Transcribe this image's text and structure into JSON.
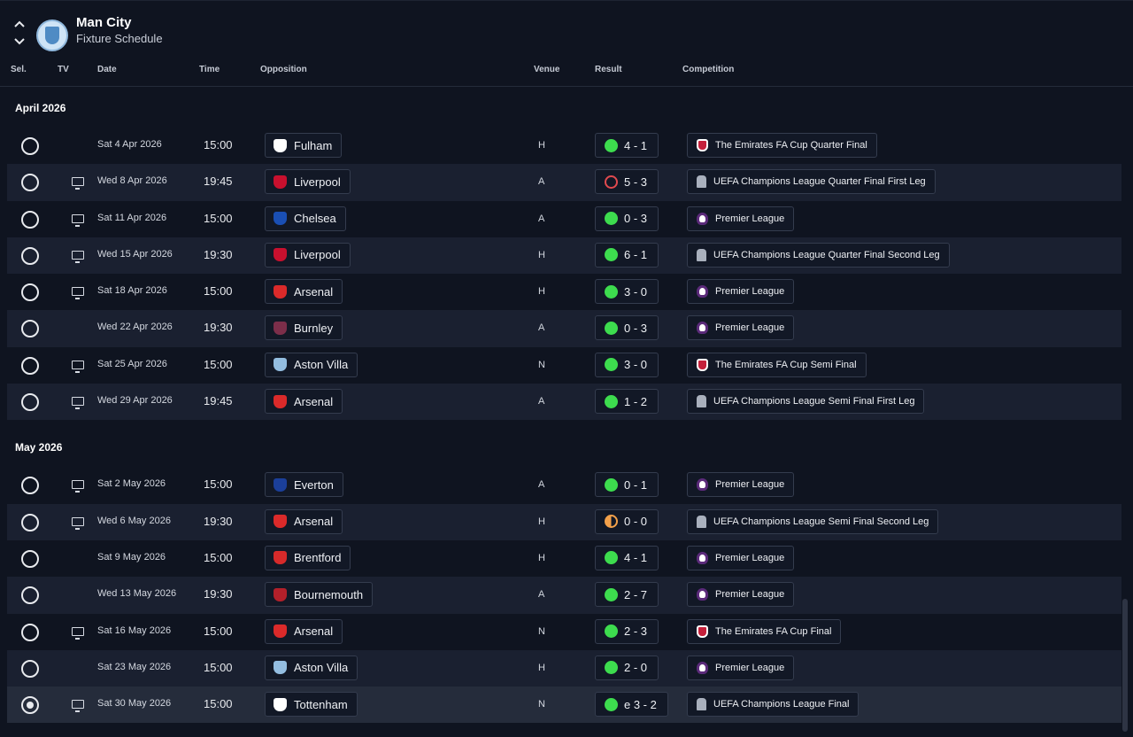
{
  "header": {
    "club_name": "Man City",
    "subtitle": "Fixture Schedule"
  },
  "columns": {
    "sel": "Sel.",
    "tv": "TV",
    "date": "Date",
    "time": "Time",
    "opposition": "Opposition",
    "venue": "Venue",
    "result": "Result",
    "competition": "Competition"
  },
  "months": [
    {
      "label": "April 2026",
      "fixtures": [
        {
          "selected": false,
          "tv": false,
          "date": "Sat 4 Apr 2026",
          "time": "15:00",
          "opponent": "Fulham",
          "opp_color": "#ffffff",
          "venue": "H",
          "outcome": "win",
          "score": "4 - 1",
          "comp_icon": "fa-cup-icon",
          "competition": "The Emirates FA Cup Quarter Final"
        },
        {
          "selected": false,
          "tv": true,
          "date": "Wed 8 Apr 2026",
          "time": "19:45",
          "opponent": "Liverpool",
          "opp_color": "#c8102e",
          "venue": "A",
          "outcome": "loss",
          "score": "5 - 3",
          "comp_icon": "ucl-icon",
          "competition": "UEFA Champions League Quarter Final First Leg"
        },
        {
          "selected": false,
          "tv": true,
          "date": "Sat 11 Apr 2026",
          "time": "15:00",
          "opponent": "Chelsea",
          "opp_color": "#1a4fb4",
          "venue": "A",
          "outcome": "win",
          "score": "0 - 3",
          "comp_icon": "premier-league-icon",
          "competition": "Premier League"
        },
        {
          "selected": false,
          "tv": true,
          "date": "Wed 15 Apr 2026",
          "time": "19:30",
          "opponent": "Liverpool",
          "opp_color": "#c8102e",
          "venue": "H",
          "outcome": "win",
          "score": "6 - 1",
          "comp_icon": "ucl-icon",
          "competition": "UEFA Champions League Quarter Final Second Leg"
        },
        {
          "selected": false,
          "tv": true,
          "date": "Sat 18 Apr 2026",
          "time": "15:00",
          "opponent": "Arsenal",
          "opp_color": "#db2a2a",
          "venue": "H",
          "outcome": "win",
          "score": "3 - 0",
          "comp_icon": "premier-league-icon",
          "competition": "Premier League"
        },
        {
          "selected": false,
          "tv": false,
          "date": "Wed 22 Apr 2026",
          "time": "19:30",
          "opponent": "Burnley",
          "opp_color": "#7c2e4a",
          "venue": "A",
          "outcome": "win",
          "score": "0 - 3",
          "comp_icon": "premier-league-icon",
          "competition": "Premier League"
        },
        {
          "selected": false,
          "tv": true,
          "date": "Sat 25 Apr 2026",
          "time": "15:00",
          "opponent": "Aston Villa",
          "opp_color": "#93bde0",
          "venue": "N",
          "outcome": "win",
          "score": "3 - 0",
          "comp_icon": "fa-cup-icon",
          "competition": "The Emirates FA Cup Semi Final"
        },
        {
          "selected": false,
          "tv": true,
          "date": "Wed 29 Apr 2026",
          "time": "19:45",
          "opponent": "Arsenal",
          "opp_color": "#db2a2a",
          "venue": "A",
          "outcome": "win",
          "score": "1 - 2",
          "comp_icon": "ucl-icon",
          "competition": "UEFA Champions League Semi Final First Leg"
        }
      ]
    },
    {
      "label": "May 2026",
      "fixtures": [
        {
          "selected": false,
          "tv": true,
          "date": "Sat 2 May 2026",
          "time": "15:00",
          "opponent": "Everton",
          "opp_color": "#1b3f9a",
          "venue": "A",
          "outcome": "win",
          "score": "0 - 1",
          "comp_icon": "premier-league-icon",
          "competition": "Premier League"
        },
        {
          "selected": false,
          "tv": true,
          "date": "Wed 6 May 2026",
          "time": "19:30",
          "opponent": "Arsenal",
          "opp_color": "#db2a2a",
          "venue": "H",
          "outcome": "draw",
          "score": "0 - 0",
          "comp_icon": "ucl-icon",
          "competition": "UEFA Champions League Semi Final Second Leg"
        },
        {
          "selected": false,
          "tv": false,
          "date": "Sat 9 May 2026",
          "time": "15:00",
          "opponent": "Brentford",
          "opp_color": "#d62a2a",
          "venue": "H",
          "outcome": "win",
          "score": "4 - 1",
          "comp_icon": "premier-league-icon",
          "competition": "Premier League"
        },
        {
          "selected": false,
          "tv": false,
          "date": "Wed 13 May 2026",
          "time": "19:30",
          "opponent": "Bournemouth",
          "opp_color": "#b3202a",
          "venue": "A",
          "outcome": "win",
          "score": "2 - 7",
          "comp_icon": "premier-league-icon",
          "competition": "Premier League"
        },
        {
          "selected": false,
          "tv": true,
          "date": "Sat 16 May 2026",
          "time": "15:00",
          "opponent": "Arsenal",
          "opp_color": "#db2a2a",
          "venue": "N",
          "outcome": "win",
          "score": "2 - 3",
          "comp_icon": "fa-cup-icon",
          "competition": "The Emirates FA Cup Final"
        },
        {
          "selected": false,
          "tv": false,
          "date": "Sat 23 May 2026",
          "time": "15:00",
          "opponent": "Aston Villa",
          "opp_color": "#93bde0",
          "venue": "H",
          "outcome": "win",
          "score": "2 - 0",
          "comp_icon": "premier-league-icon",
          "competition": "Premier League"
        },
        {
          "selected": true,
          "tv": true,
          "date": "Sat 30 May 2026",
          "time": "15:00",
          "opponent": "Tottenham",
          "opp_color": "#ffffff",
          "venue": "N",
          "outcome": "win",
          "score": "e 3 - 2",
          "comp_icon": "ucl-icon",
          "competition": "UEFA Champions League Final"
        }
      ]
    }
  ]
}
